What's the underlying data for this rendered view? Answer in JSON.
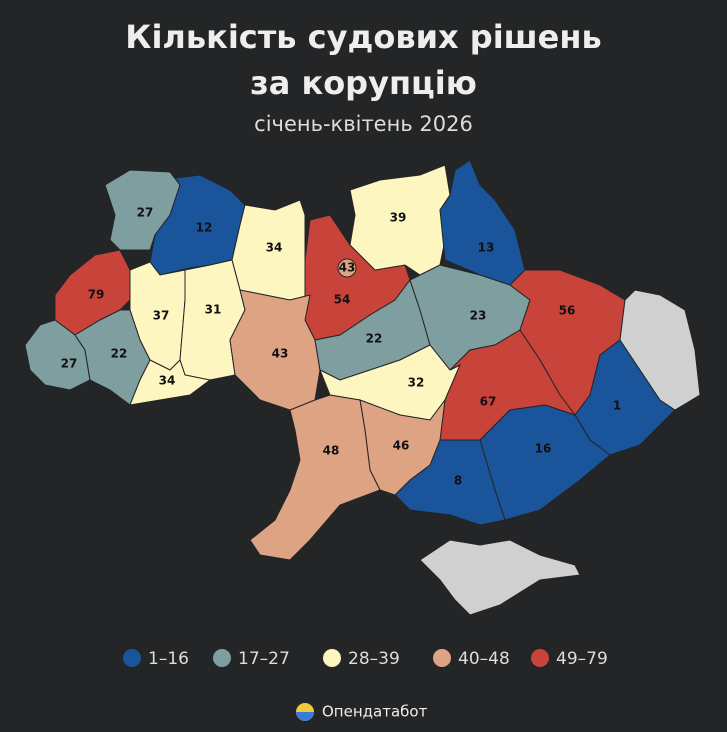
{
  "header": {
    "title": "Кількість судових рішень за корупцію",
    "subtitle": "січень-квітень 2026"
  },
  "regions": [
    {
      "value": 27,
      "color": "#7f9ea0"
    },
    {
      "value": 12,
      "color": "#1a549a"
    },
    {
      "value": 34,
      "color": "#fdf6c0"
    },
    {
      "value": 54,
      "color": "#c8443a"
    },
    {
      "value": 43,
      "color": "#dea383"
    },
    {
      "value": 39,
      "color": "#fdf6c0"
    },
    {
      "value": 13,
      "color": "#1a549a"
    },
    {
      "value": 79,
      "color": "#c8443a"
    },
    {
      "value": 37,
      "color": "#fdf6c0"
    },
    {
      "value": 31,
      "color": "#fdf6c0"
    },
    {
      "value": 27,
      "color": "#7f9ea0"
    },
    {
      "value": 22,
      "color": "#7f9ea0"
    },
    {
      "value": 34,
      "color": "#fdf6c0"
    },
    {
      "value": 43,
      "color": "#dea383"
    },
    {
      "value": 22,
      "color": "#7f9ea0"
    },
    {
      "value": 23,
      "color": "#7f9ea0"
    },
    {
      "value": 56,
      "color": "#c8443a"
    },
    {
      "value": 1,
      "color": "#1a549a"
    },
    {
      "value": 32,
      "color": "#fdf6c0"
    },
    {
      "value": 67,
      "color": "#c8443a"
    },
    {
      "value": 16,
      "color": "#1a549a"
    },
    {
      "value": 8,
      "color": "#1a549a"
    },
    {
      "value": 46,
      "color": "#dea383"
    },
    {
      "value": 48,
      "color": "#dea383"
    }
  ],
  "legend": [
    {
      "label": "1–16",
      "color": "#1a549a"
    },
    {
      "label": "17–27",
      "color": "#7f9ea0"
    },
    {
      "label": "28–39",
      "color": "#fdf6c0"
    },
    {
      "label": "40–48",
      "color": "#dea383"
    },
    {
      "label": "49–79",
      "color": "#c8443a"
    }
  ],
  "footer": {
    "brand": "Опендатабот"
  }
}
